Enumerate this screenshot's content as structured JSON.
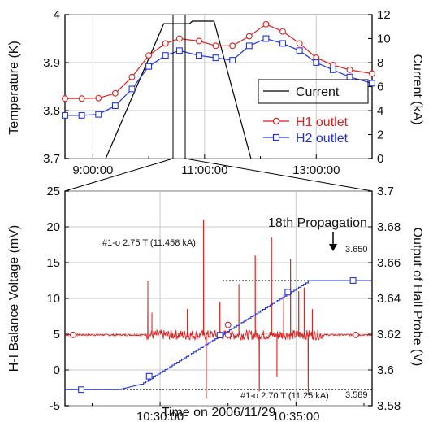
{
  "chart_data": [
    {
      "type": "line",
      "x_ticks": [
        "9:00:00",
        "11:00:00",
        "13:00:00"
      ],
      "y_label": "Temperature (K)",
      "y_ticks": [
        "3.7",
        "3.8",
        "3.9",
        "4"
      ],
      "ylim": [
        3.7,
        4.0
      ],
      "y2_label": "Current (kA)",
      "y2_ticks": [
        "0",
        "2",
        "4",
        "6",
        "8",
        "10",
        "12"
      ],
      "y2lim": [
        0,
        12
      ],
      "xlim_hours": [
        8.5,
        14.0
      ],
      "legend_position": "right",
      "grid": true,
      "series": [
        {
          "name": "Current",
          "axis": "right",
          "color": "#000000",
          "marker": "none",
          "x": [
            9.23,
            10.27,
            10.73,
            10.78,
            11.17,
            11.83
          ],
          "y": [
            0,
            11.25,
            11.25,
            11.458,
            11.458,
            0
          ]
        },
        {
          "name": "H1 outlet",
          "axis": "left",
          "color": "#dd2222",
          "marker": "circle",
          "x": [
            8.5,
            8.8,
            9.1,
            9.4,
            9.7,
            10.0,
            10.3,
            10.55,
            10.9,
            11.2,
            11.5,
            11.8,
            12.1,
            12.4,
            12.7,
            13.0,
            13.3,
            13.6,
            14.0
          ],
          "y": [
            3.825,
            3.825,
            3.826,
            3.836,
            3.87,
            3.915,
            3.94,
            3.95,
            3.945,
            3.935,
            3.935,
            3.955,
            3.98,
            3.965,
            3.94,
            3.91,
            3.895,
            3.885,
            3.877
          ]
        },
        {
          "name": "H2 outlet",
          "axis": "left",
          "color": "#2233dd",
          "marker": "square",
          "x": [
            8.5,
            8.8,
            9.1,
            9.4,
            9.7,
            10.0,
            10.3,
            10.55,
            10.9,
            11.2,
            11.5,
            11.8,
            12.1,
            12.4,
            12.7,
            13.0,
            13.3,
            13.6,
            14.0
          ],
          "y": [
            3.79,
            3.79,
            3.792,
            3.81,
            3.845,
            3.892,
            3.915,
            3.925,
            3.915,
            3.91,
            3.905,
            3.935,
            3.95,
            3.94,
            3.925,
            3.9,
            3.885,
            3.87,
            3.857
          ]
        }
      ]
    },
    {
      "type": "line",
      "x_label": "Time on 2006/11/29",
      "x_ticks": [
        "10:30:00",
        "10:35:00"
      ],
      "xlim_minutes": [
        626.5,
        637.8
      ],
      "y_label": "H-I Balance Voltage (mV)",
      "y_ticks": [
        "-5",
        "0",
        "5",
        "10",
        "15",
        "20",
        "25"
      ],
      "ylim": [
        -5,
        25
      ],
      "y2_label": "Output of Hall Probe (V)",
      "y2_ticks": [
        "3.58",
        "3.6",
        "3.62",
        "3.64",
        "3.66",
        "3.68",
        "3.7"
      ],
      "y2lim": [
        3.58,
        3.7
      ],
      "grid": true,
      "annotations": [
        {
          "text": "18th Propagation"
        },
        {
          "text": "#1-o 2.75 T (11.458 kA)"
        },
        {
          "text": "#1-o 2.70 T (11.25 kA)"
        },
        {
          "text": "3.650"
        },
        {
          "text": "3.589"
        }
      ],
      "series": [
        {
          "name": "H-I Balance Voltage",
          "axis": "left",
          "color": "#dd2222",
          "marker": "circle",
          "baseline": 4.9,
          "spikes": [
            {
              "x": 629.55,
              "y": 12.5
            },
            {
              "x": 629.7,
              "y": 8.0
            },
            {
              "x": 631.0,
              "y": 8.5
            },
            {
              "x": 631.6,
              "y": 21.0
            },
            {
              "x": 631.7,
              "y": -4.0
            },
            {
              "x": 632.2,
              "y": 9.5
            },
            {
              "x": 632.9,
              "y": 12.0
            },
            {
              "x": 633.5,
              "y": 16.0
            },
            {
              "x": 633.65,
              "y": -3.0
            },
            {
              "x": 634.1,
              "y": 18.5
            },
            {
              "x": 634.3,
              "y": -1.0
            },
            {
              "x": 634.55,
              "y": 10.5
            },
            {
              "x": 634.8,
              "y": 15.5
            },
            {
              "x": 635.1,
              "y": 11.0
            },
            {
              "x": 635.3,
              "y": 11.5
            },
            {
              "x": 635.45,
              "y": -3.5
            },
            {
              "x": 635.6,
              "y": 8.5
            }
          ]
        },
        {
          "name": "Hall Probe",
          "axis": "right",
          "color": "#2233dd",
          "marker": "square",
          "x": [
            626.5,
            628.5,
            629.3,
            635.45,
            635.5,
            637.8
          ],
          "y": [
            3.589,
            3.589,
            3.592,
            3.6495,
            3.65,
            3.65
          ]
        }
      ]
    }
  ]
}
